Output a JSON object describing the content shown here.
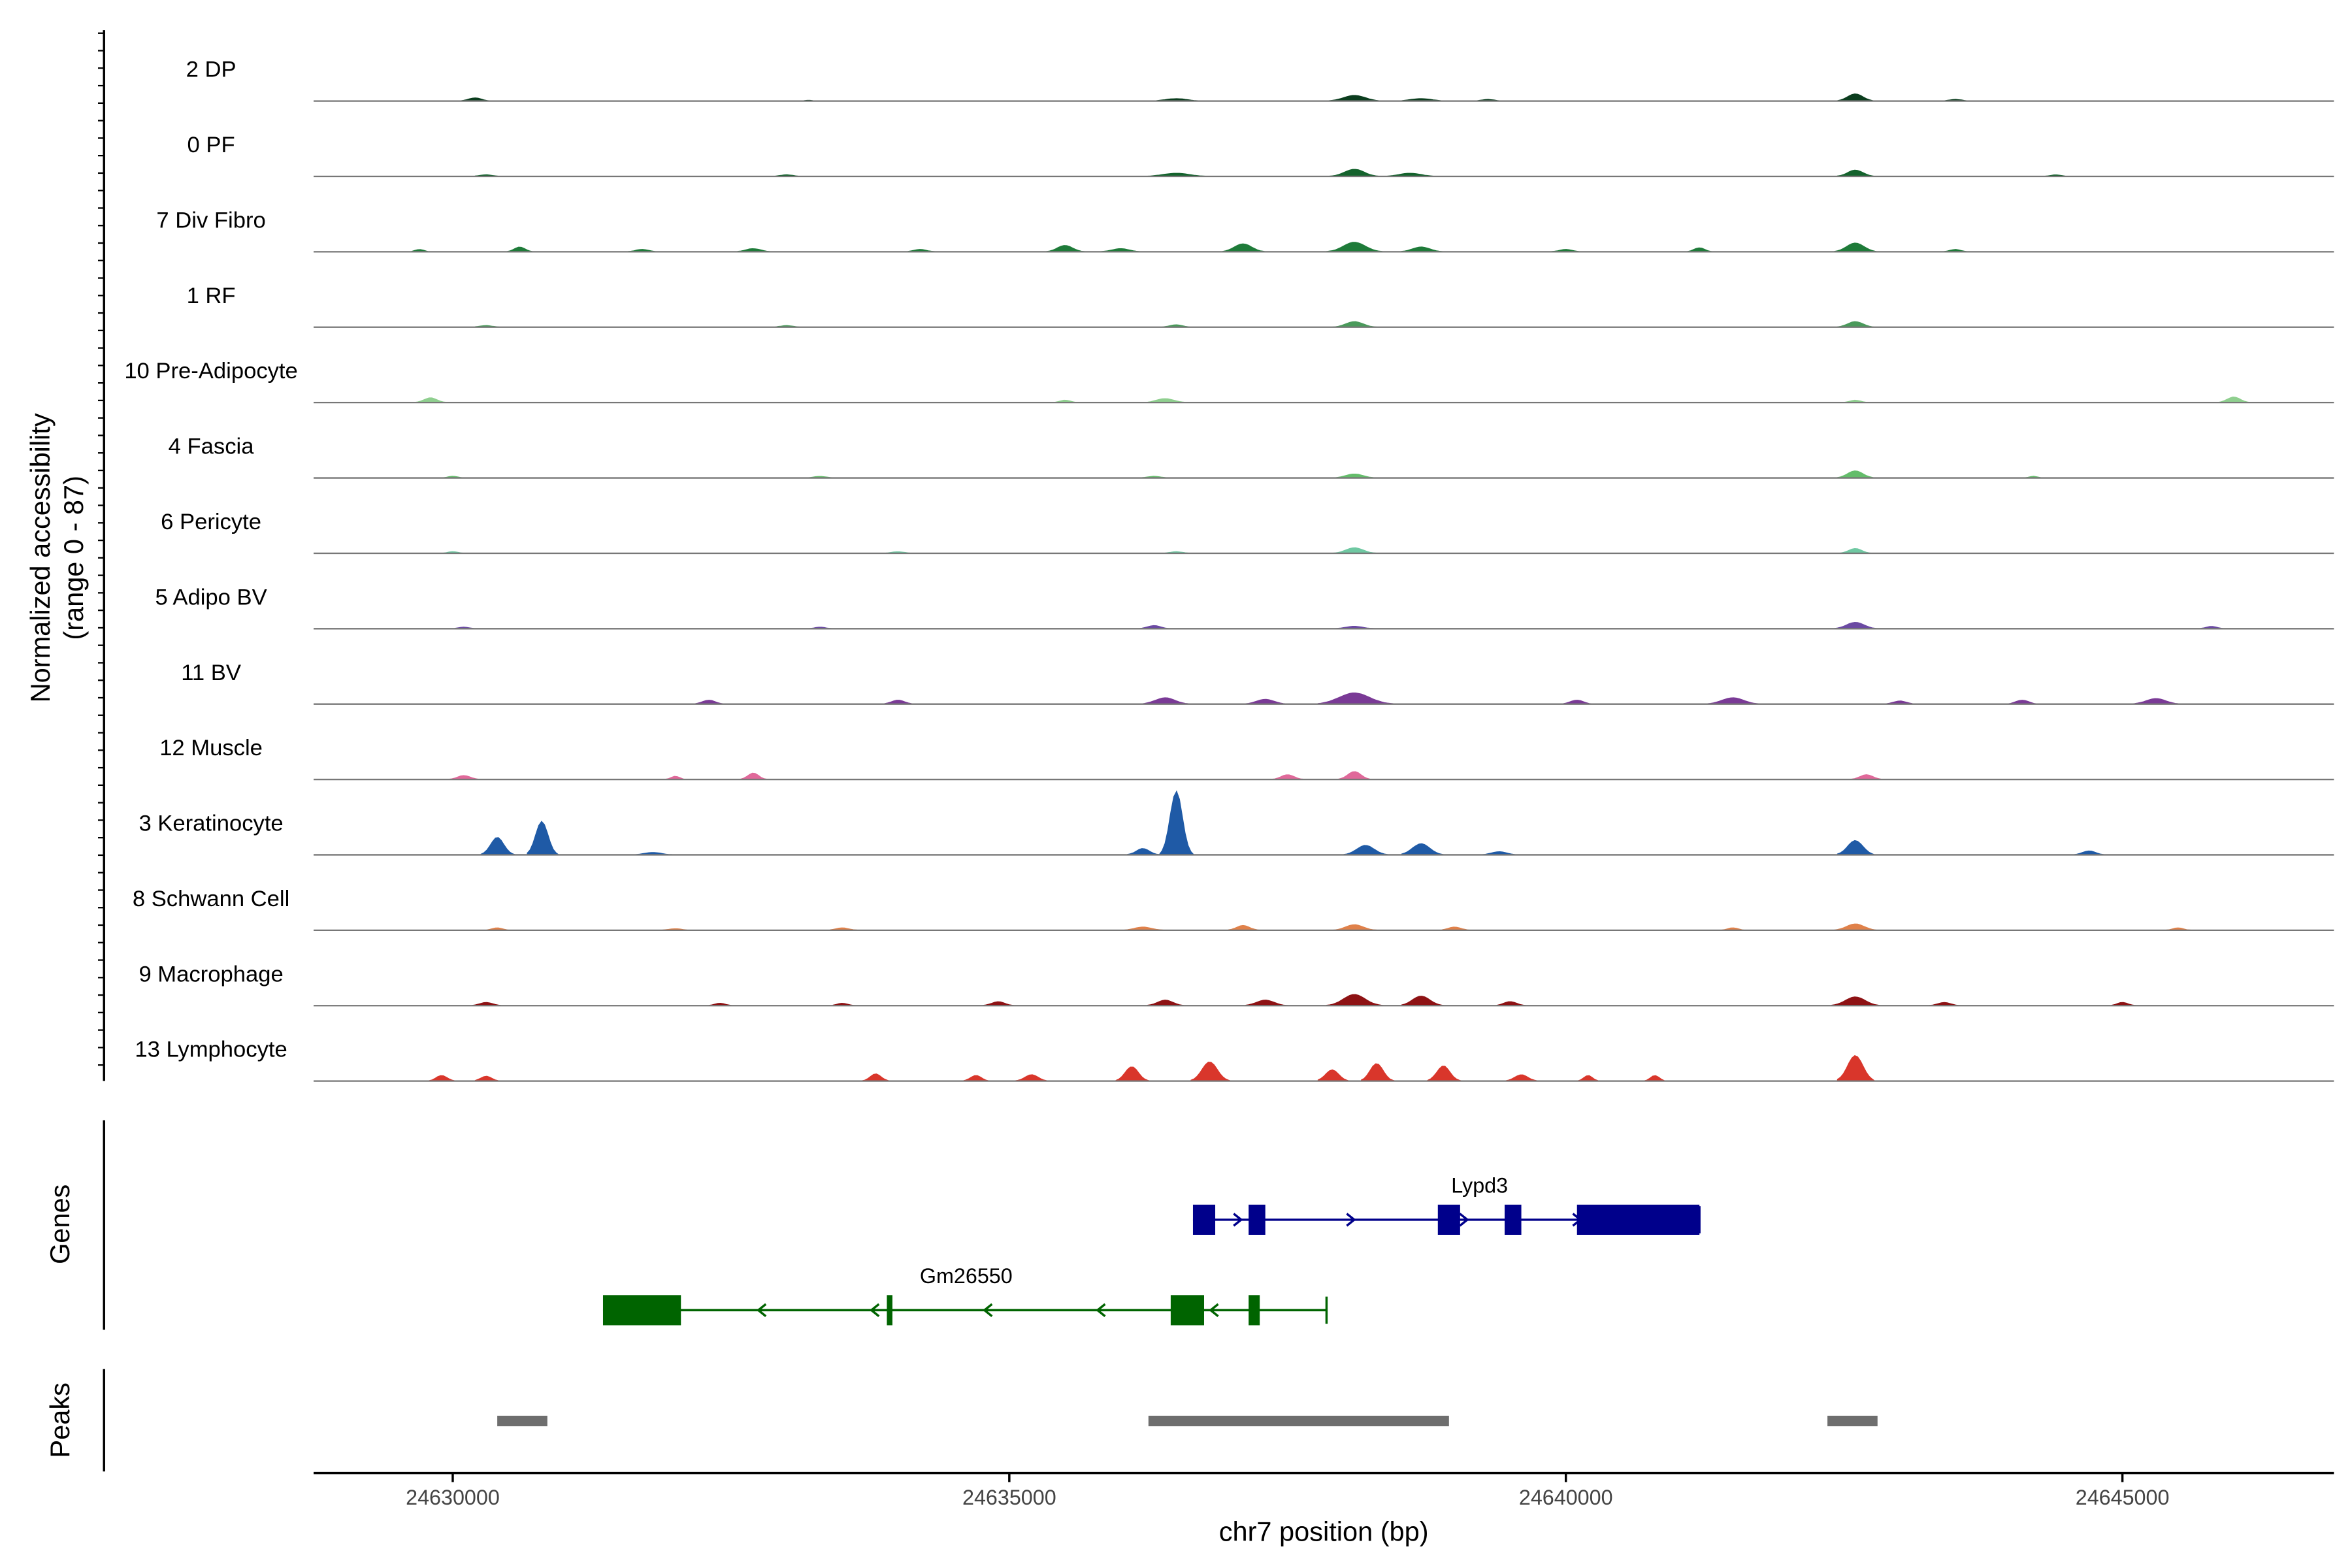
{
  "chart_data": {
    "type": "area",
    "chromosome": "chr7",
    "xlabel": "chr7 position (bp)",
    "xlim": [
      24628750,
      24646900
    ],
    "x_ticks": [
      24630000,
      24635000,
      24640000,
      24645000
    ],
    "x_tick_labels": [
      "24630000",
      "24635000",
      "24640000",
      "24645000"
    ],
    "ylabel_line1": "Normalized accessibility",
    "ylabel_line2": "(range 0 - 87)",
    "ylim": [
      0,
      87
    ],
    "tracks_label": "Genes",
    "peaks_label": "Peaks",
    "series": [
      {
        "name": "2 DP",
        "color": "#0b3d1e",
        "peaks": [
          [
            24630200,
            300,
            4
          ],
          [
            24633200,
            200,
            1
          ],
          [
            24636500,
            500,
            3
          ],
          [
            24638100,
            500,
            7
          ],
          [
            24638700,
            500,
            3
          ],
          [
            24639300,
            300,
            2
          ],
          [
            24642600,
            350,
            9
          ],
          [
            24643500,
            300,
            2
          ]
        ]
      },
      {
        "name": "0 PF",
        "color": "#14632d",
        "peaks": [
          [
            24630300,
            300,
            2
          ],
          [
            24633000,
            300,
            2
          ],
          [
            24636500,
            600,
            4
          ],
          [
            24638100,
            450,
            9
          ],
          [
            24638600,
            500,
            4
          ],
          [
            24642600,
            350,
            8
          ],
          [
            24644400,
            250,
            2
          ]
        ]
      },
      {
        "name": "7 Div Fibro",
        "color": "#1e7b39",
        "peaks": [
          [
            24629700,
            200,
            3
          ],
          [
            24630600,
            250,
            6
          ],
          [
            24631700,
            300,
            3
          ],
          [
            24632700,
            350,
            4
          ],
          [
            24634200,
            300,
            3
          ],
          [
            24635500,
            350,
            8
          ],
          [
            24636000,
            400,
            4
          ],
          [
            24637100,
            400,
            10
          ],
          [
            24638100,
            500,
            12
          ],
          [
            24638700,
            400,
            6
          ],
          [
            24640000,
            300,
            3
          ],
          [
            24641200,
            250,
            5
          ],
          [
            24642600,
            400,
            11
          ],
          [
            24643500,
            250,
            3
          ]
        ]
      },
      {
        "name": "1 RF",
        "color": "#4a9a5b",
        "peaks": [
          [
            24630300,
            300,
            2
          ],
          [
            24633000,
            300,
            2
          ],
          [
            24636500,
            300,
            3
          ],
          [
            24638100,
            400,
            7
          ],
          [
            24642600,
            350,
            7
          ]
        ]
      },
      {
        "name": "10 Pre-Adipocyte",
        "color": "#8fcf8f",
        "peaks": [
          [
            24629800,
            300,
            6
          ],
          [
            24635500,
            250,
            3
          ],
          [
            24636400,
            400,
            5
          ],
          [
            24642600,
            250,
            3
          ],
          [
            24646000,
            300,
            7
          ]
        ]
      },
      {
        "name": "4 Fascia",
        "color": "#64bd6b",
        "peaks": [
          [
            24630000,
            250,
            2
          ],
          [
            24633300,
            300,
            2
          ],
          [
            24636300,
            300,
            2
          ],
          [
            24638100,
            400,
            5
          ],
          [
            24642600,
            350,
            9
          ],
          [
            24644200,
            200,
            2
          ]
        ]
      },
      {
        "name": "6 Pericyte",
        "color": "#6fc8a2",
        "peaks": [
          [
            24630000,
            250,
            2
          ],
          [
            24634000,
            300,
            2
          ],
          [
            24636500,
            300,
            2
          ],
          [
            24638100,
            400,
            7
          ],
          [
            24642600,
            300,
            6
          ]
        ]
      },
      {
        "name": "5 Adipo BV",
        "color": "#6b4aa3",
        "peaks": [
          [
            24630100,
            250,
            2
          ],
          [
            24633300,
            250,
            2
          ],
          [
            24636300,
            300,
            4
          ],
          [
            24638100,
            400,
            3
          ],
          [
            24642600,
            400,
            8
          ],
          [
            24645800,
            250,
            3
          ]
        ]
      },
      {
        "name": "11 BV",
        "color": "#7a3a96",
        "peaks": [
          [
            24632300,
            300,
            5
          ],
          [
            24634000,
            300,
            5
          ],
          [
            24636400,
            450,
            8
          ],
          [
            24637300,
            400,
            6
          ],
          [
            24638100,
            700,
            14
          ],
          [
            24640100,
            300,
            5
          ],
          [
            24641500,
            500,
            8
          ],
          [
            24643000,
            300,
            4
          ],
          [
            24644100,
            300,
            5
          ],
          [
            24645300,
            450,
            7
          ]
        ]
      },
      {
        "name": "12 Muscle",
        "color": "#e0699a",
        "peaks": [
          [
            24630100,
            300,
            5
          ],
          [
            24632000,
            200,
            4
          ],
          [
            24632700,
            250,
            8
          ],
          [
            24637500,
            300,
            6
          ],
          [
            24638100,
            300,
            10
          ],
          [
            24642700,
            300,
            6
          ]
        ]
      },
      {
        "name": "3 Keratinocyte",
        "color": "#1f5aa6",
        "peaks": [
          [
            24630400,
            300,
            22
          ],
          [
            24630800,
            280,
            42
          ],
          [
            24631800,
            400,
            3
          ],
          [
            24636200,
            300,
            8
          ],
          [
            24636500,
            280,
            80
          ],
          [
            24638200,
            400,
            12
          ],
          [
            24638700,
            400,
            14
          ],
          [
            24639400,
            350,
            4
          ],
          [
            24642600,
            350,
            18
          ],
          [
            24644700,
            300,
            5
          ]
        ]
      },
      {
        "name": "8 Schwann Cell",
        "color": "#e0814a",
        "peaks": [
          [
            24630400,
            250,
            3
          ],
          [
            24632000,
            300,
            2
          ],
          [
            24633500,
            300,
            3
          ],
          [
            24636200,
            400,
            4
          ],
          [
            24637100,
            300,
            6
          ],
          [
            24638100,
            400,
            7
          ],
          [
            24639000,
            300,
            4
          ],
          [
            24641500,
            250,
            3
          ],
          [
            24642600,
            400,
            8
          ],
          [
            24645500,
            250,
            3
          ]
        ]
      },
      {
        "name": "9 Macrophage",
        "color": "#8e1214",
        "peaks": [
          [
            24630300,
            300,
            4
          ],
          [
            24632400,
            250,
            3
          ],
          [
            24633500,
            250,
            3
          ],
          [
            24634900,
            300,
            5
          ],
          [
            24636400,
            350,
            7
          ],
          [
            24637300,
            400,
            7
          ],
          [
            24638100,
            500,
            14
          ],
          [
            24638700,
            400,
            12
          ],
          [
            24639500,
            300,
            5
          ],
          [
            24642600,
            450,
            11
          ],
          [
            24643400,
            300,
            4
          ],
          [
            24645000,
            250,
            4
          ]
        ]
      },
      {
        "name": "13 Lymphocyte",
        "color": "#d9362b",
        "peaks": [
          [
            24629900,
            250,
            7
          ],
          [
            24630300,
            250,
            6
          ],
          [
            24633800,
            250,
            9
          ],
          [
            24634700,
            250,
            7
          ],
          [
            24635200,
            300,
            8
          ],
          [
            24636100,
            300,
            18
          ],
          [
            24636800,
            350,
            24
          ],
          [
            24637900,
            300,
            14
          ],
          [
            24638300,
            300,
            22
          ],
          [
            24638900,
            300,
            19
          ],
          [
            24639600,
            300,
            8
          ],
          [
            24640200,
            200,
            7
          ],
          [
            24640800,
            200,
            7
          ],
          [
            24642600,
            350,
            32
          ]
        ]
      }
    ],
    "genes": [
      {
        "name": "Lypd3",
        "strand": "+",
        "color": "#00008b",
        "start": 24636650,
        "end": 24641200,
        "exons": [
          [
            24636650,
            24636850
          ],
          [
            24637150,
            24637300
          ],
          [
            24638850,
            24639050
          ],
          [
            24639450,
            24639600
          ],
          [
            24640100,
            24641200
          ]
        ]
      },
      {
        "name": "Gm26550",
        "strand": "-",
        "color": "#006400",
        "start": 24631350,
        "end": 24637850,
        "exons": [
          [
            24631350,
            24632050
          ],
          [
            24633900,
            24633950
          ],
          [
            24636450,
            24636750
          ],
          [
            24637150,
            24637250
          ]
        ]
      }
    ],
    "peak_regions": [
      [
        24630400,
        24630850
      ],
      [
        24636250,
        24638950
      ],
      [
        24642350,
        24642800
      ]
    ]
  }
}
